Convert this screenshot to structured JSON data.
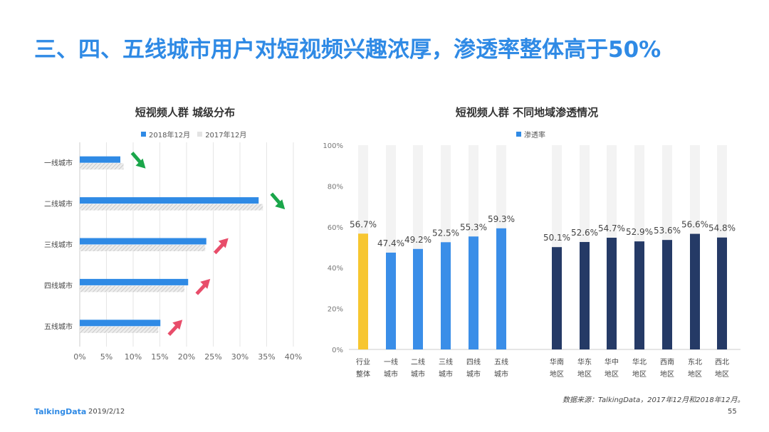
{
  "page": {
    "title": "三、四、五线城市用户对短视频兴趣浓厚，渗透率整体高于50%",
    "logo": "TalkingData",
    "date": "2019/2/12",
    "page_number": "55",
    "source": "数据来源：TalkingData，2017年12月和2018年12月。"
  },
  "colors": {
    "title": "#2f8ae5",
    "bar_2018": "#2f8ae5",
    "bar_2017": "#d9d9d9",
    "tier": "#3a8ee8",
    "industry": "#f7c630",
    "region": "#253a66",
    "arrow_down": "#1aa64a",
    "arrow_up": "#e84d6a"
  },
  "chart_data": [
    {
      "type": "bar",
      "orientation": "horizontal",
      "title": "短视频人群  城级分布",
      "categories": [
        "一线城市",
        "二线城市",
        "三线城市",
        "四线城市",
        "五线城市"
      ],
      "series": [
        {
          "name": "2018年12月",
          "values": [
            7.6,
            33.5,
            23.7,
            20.3,
            15.1
          ]
        },
        {
          "name": "2017年12月",
          "values": [
            8.2,
            34.3,
            23.5,
            19.6,
            14.7
          ]
        }
      ],
      "trend": [
        "down",
        "down",
        "up",
        "up",
        "up"
      ],
      "xlim": [
        0,
        40
      ],
      "xticks": [
        "0%",
        "5%",
        "10%",
        "15%",
        "20%",
        "25%",
        "30%",
        "35%",
        "40%"
      ],
      "grid": true
    },
    {
      "type": "bar",
      "title": "短视频人群  不同地域渗透情况",
      "legend": [
        "渗透率"
      ],
      "categories": [
        [
          "行业",
          "整体"
        ],
        [
          "一线",
          "城市"
        ],
        [
          "二线",
          "城市"
        ],
        [
          "三线",
          "城市"
        ],
        [
          "四线",
          "城市"
        ],
        [
          "五线",
          "城市"
        ],
        [
          "华南",
          "地区"
        ],
        [
          "华东",
          "地区"
        ],
        [
          "华中",
          "地区"
        ],
        [
          "华北",
          "地区"
        ],
        [
          "西南",
          "地区"
        ],
        [
          "东北",
          "地区"
        ],
        [
          "西北",
          "地区"
        ]
      ],
      "values": [
        56.7,
        47.4,
        49.2,
        52.5,
        55.3,
        59.3,
        50.1,
        52.6,
        54.7,
        52.9,
        53.6,
        56.6,
        54.8
      ],
      "labels": [
        "56.7%",
        "47.4%",
        "49.2%",
        "52.5%",
        "55.3%",
        "59.3%",
        "50.1%",
        "52.6%",
        "54.7%",
        "52.9%",
        "53.6%",
        "56.6%",
        "54.8%"
      ],
      "groups": [
        "industry",
        "tier",
        "tier",
        "tier",
        "tier",
        "tier",
        "region",
        "region",
        "region",
        "region",
        "region",
        "region",
        "region"
      ],
      "ylim": [
        0,
        100
      ],
      "yticks": [
        "0%",
        "20%",
        "40%",
        "60%",
        "80%",
        "100%"
      ]
    }
  ]
}
